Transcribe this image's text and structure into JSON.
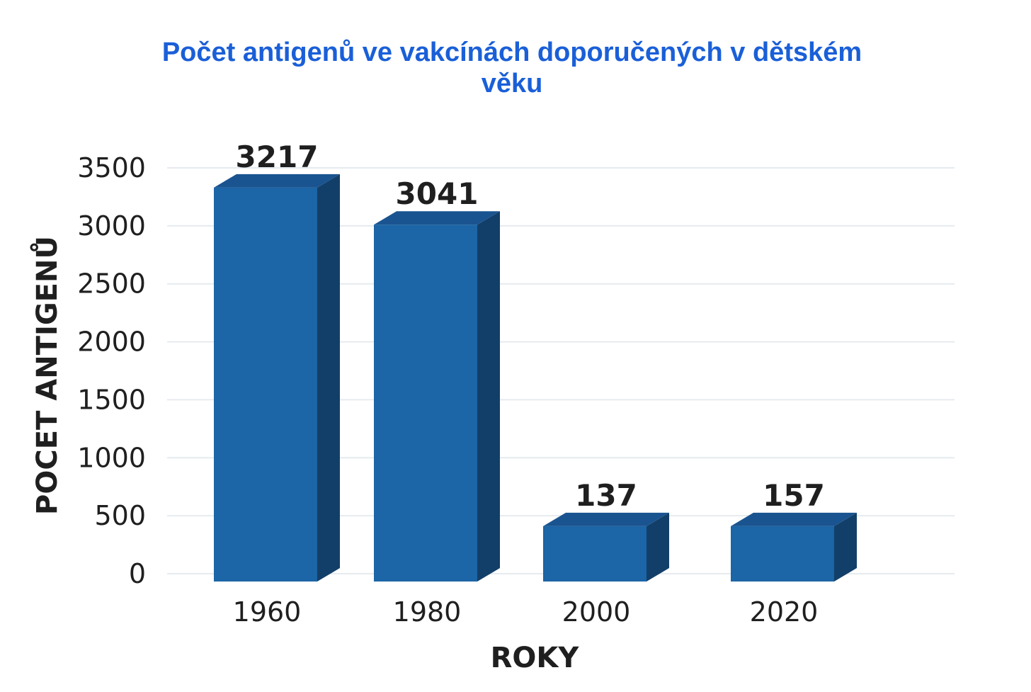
{
  "chart_data": {
    "type": "bar",
    "title": "Počet antigenů ve vakcínách doporučených v dětském věku",
    "title_lines": [
      "Počet antigenů ve vakcínách doporučených v dětském",
      "věku"
    ],
    "xlabel": "ROKY",
    "ylabel": "POCET ANTIGENŮ",
    "categories": [
      "1960",
      "1980",
      "2000",
      "2020"
    ],
    "values": [
      3217,
      3041,
      137,
      157
    ],
    "bar_heights": [
      3330,
      3010,
      410,
      410
    ],
    "ylim": [
      0,
      3500
    ],
    "yticks": [
      0,
      500,
      1000,
      1500,
      2000,
      2500,
      3000,
      3500
    ],
    "grid": true,
    "legend": "none",
    "style": "3d-bar",
    "colors": {
      "bar_front": "#1c65a6",
      "bar_side": "#123f69",
      "bar_top": "#1a5490",
      "title": "#1a5fd8"
    }
  }
}
